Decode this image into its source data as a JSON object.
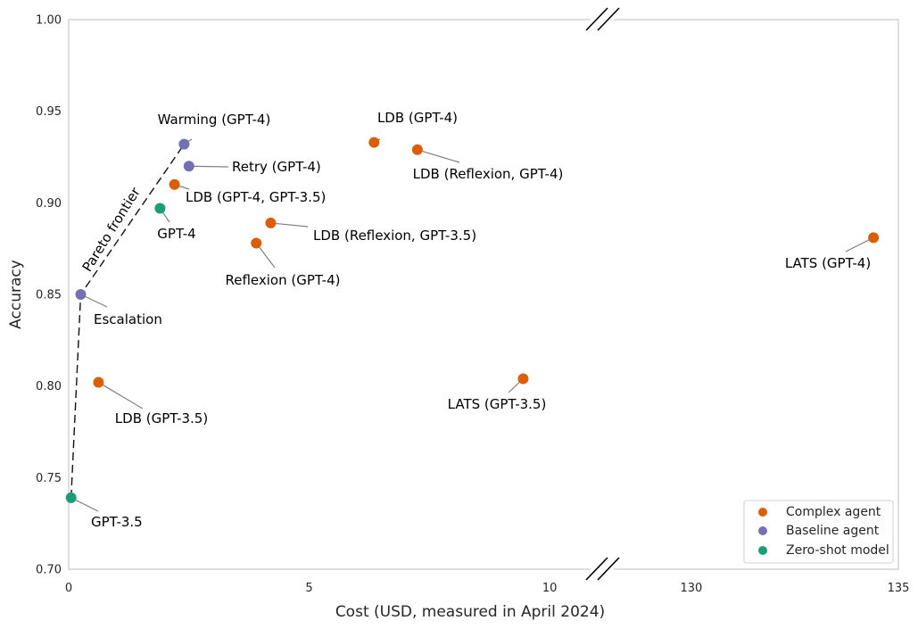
{
  "chart_data": {
    "type": "scatter",
    "xlabel": "Cost (USD, measured in April 2024)",
    "ylabel": "Accuracy",
    "ylim": [
      0.7,
      1.0
    ],
    "yticks": [
      0.7,
      0.75,
      0.8,
      0.85,
      0.9,
      0.95,
      1.0
    ],
    "ytick_labels": [
      "0.70",
      "0.75",
      "0.80",
      "0.85",
      "0.90",
      "0.95",
      "1.00"
    ],
    "x_segments": [
      {
        "xlim": [
          0,
          11
        ],
        "ticks": [
          0,
          5,
          10
        ],
        "tick_labels": [
          "0",
          "5",
          "10"
        ]
      },
      {
        "xlim": [
          128,
          135
        ],
        "ticks": [
          130,
          135
        ],
        "tick_labels": [
          "130",
          "135"
        ]
      }
    ],
    "axis_break": true,
    "grid": false,
    "legend_position": "lower-right",
    "colors": {
      "complex": "#d95f02",
      "baseline": "#7570b3",
      "zeroshot": "#1b9e77"
    },
    "series": [
      {
        "name": "Complex agent",
        "key": "complex"
      },
      {
        "name": "Baseline agent",
        "key": "baseline"
      },
      {
        "name": "Zero-shot model",
        "key": "zeroshot"
      }
    ],
    "points": [
      {
        "label": "Warming (GPT-4)",
        "series": "baseline",
        "x": 2.4,
        "y": 0.932
      },
      {
        "label": "Retry (GPT-4)",
        "series": "baseline",
        "x": 2.5,
        "y": 0.92
      },
      {
        "label": "Escalation",
        "series": "baseline",
        "x": 0.25,
        "y": 0.85
      },
      {
        "label": "GPT-4",
        "series": "zeroshot",
        "x": 1.9,
        "y": 0.897
      },
      {
        "label": "GPT-3.5",
        "series": "zeroshot",
        "x": 0.05,
        "y": 0.739
      },
      {
        "label": "LDB (GPT-4)",
        "series": "complex",
        "x": 6.35,
        "y": 0.933
      },
      {
        "label": "LDB (Reflexion, GPT-4)",
        "series": "complex",
        "x": 7.25,
        "y": 0.929
      },
      {
        "label": "LDB (GPT-4, GPT-3.5)",
        "series": "complex",
        "x": 2.2,
        "y": 0.91
      },
      {
        "label": "LDB (Reflexion, GPT-3.5)",
        "series": "complex",
        "x": 4.2,
        "y": 0.889
      },
      {
        "label": "Reflexion (GPT-4)",
        "series": "complex",
        "x": 3.9,
        "y": 0.878
      },
      {
        "label": "LDB (GPT-3.5)",
        "series": "complex",
        "x": 0.62,
        "y": 0.802
      },
      {
        "label": "LATS (GPT-3.5)",
        "series": "complex",
        "x": 9.45,
        "y": 0.804
      },
      {
        "label": "LATS (GPT-4)",
        "series": "complex",
        "x": 134.4,
        "y": 0.881
      }
    ],
    "pareto_frontier": {
      "label": "Pareto frontier",
      "points": [
        [
          0.05,
          0.739
        ],
        [
          0.25,
          0.85
        ],
        [
          2.4,
          0.932
        ]
      ]
    }
  }
}
